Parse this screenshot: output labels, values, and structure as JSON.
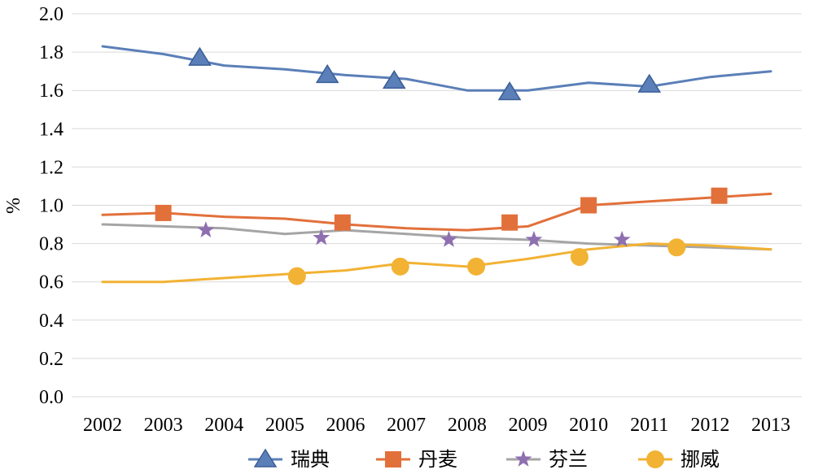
{
  "chart_data": {
    "type": "line",
    "xlabel": "",
    "ylabel": "%",
    "ylim": [
      0.0,
      2.0
    ],
    "yticks": [
      "0.0",
      "0.2",
      "0.4",
      "0.6",
      "0.8",
      "1.0",
      "1.2",
      "1.4",
      "1.6",
      "1.8",
      "2.0"
    ],
    "x": [
      "2002",
      "2003",
      "2004",
      "2005",
      "2006",
      "2007",
      "2008",
      "2009",
      "2010",
      "2011",
      "2012",
      "2013"
    ],
    "grid": true,
    "legend_position": "bottom",
    "series": [
      {
        "name": "瑞典",
        "color": "#5b7fb8",
        "marker": "triangle",
        "values": [
          1.83,
          1.79,
          1.73,
          1.71,
          1.68,
          1.66,
          1.6,
          1.6,
          1.64,
          1.62,
          1.67,
          1.7
        ],
        "marker_points": [
          [
            2003.6,
            1.77
          ],
          [
            2005.7,
            1.68
          ],
          [
            2006.8,
            1.65
          ],
          [
            2008.7,
            1.59
          ],
          [
            2011.0,
            1.63
          ]
        ]
      },
      {
        "name": "丹麦",
        "color": "#e2703a",
        "marker": "square",
        "values": [
          0.95,
          0.96,
          0.94,
          0.93,
          0.9,
          0.88,
          0.87,
          0.89,
          1.0,
          1.02,
          1.04,
          1.06
        ],
        "marker_points": [
          [
            2003.0,
            0.96
          ],
          [
            2005.95,
            0.91
          ],
          [
            2008.7,
            0.91
          ],
          [
            2010.0,
            1.0
          ],
          [
            2012.15,
            1.05
          ]
        ]
      },
      {
        "name": "芬兰",
        "color": "#a5a5a5",
        "marker_color": "#8e6fb0",
        "marker": "star",
        "values": [
          0.9,
          0.89,
          0.88,
          0.85,
          0.87,
          0.85,
          0.83,
          0.82,
          0.8,
          0.79,
          0.78,
          0.77
        ],
        "marker_points": [
          [
            2003.7,
            0.87
          ],
          [
            2005.6,
            0.83
          ],
          [
            2007.7,
            0.82
          ],
          [
            2009.1,
            0.82
          ],
          [
            2010.55,
            0.82
          ]
        ]
      },
      {
        "name": "挪威",
        "color": "#f2b233",
        "marker": "circle",
        "values": [
          0.6,
          0.6,
          0.62,
          0.64,
          0.66,
          0.7,
          0.68,
          0.72,
          0.77,
          0.8,
          0.79,
          0.77
        ],
        "marker_points": [
          [
            2005.2,
            0.63
          ],
          [
            2006.9,
            0.68
          ],
          [
            2008.15,
            0.68
          ],
          [
            2009.85,
            0.73
          ],
          [
            2011.45,
            0.78
          ]
        ]
      }
    ]
  }
}
